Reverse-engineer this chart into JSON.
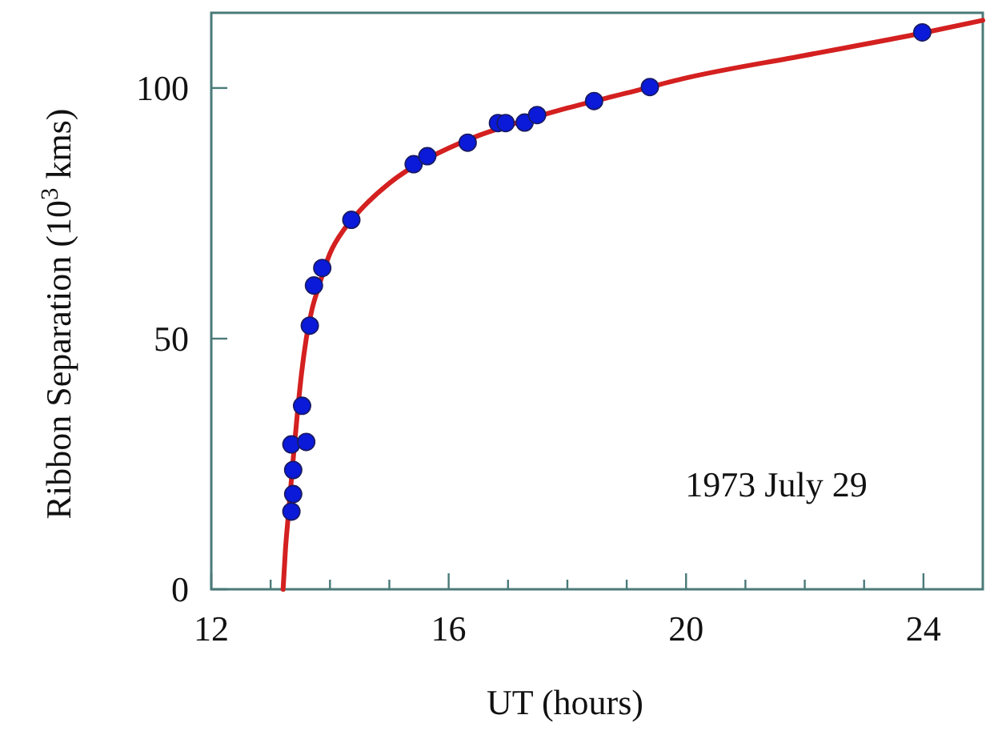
{
  "chart_data": {
    "type": "scatter",
    "xlabel": "UT (hours)",
    "ylabel": "Ribbon Separation (10$^{3}$ kms)",
    "xlim": [
      12,
      25
    ],
    "ylim": [
      0,
      115
    ],
    "xticks": [
      12,
      {
        "value": 13,
        "label": null
      },
      {
        "value": 14,
        "label": null
      },
      {
        "value": 15,
        "label": null
      },
      16,
      {
        "value": 17,
        "label": null
      },
      {
        "value": 18,
        "label": null
      },
      {
        "value": 19,
        "label": null
      },
      20,
      {
        "value": 21,
        "label": null
      },
      {
        "value": 22,
        "label": null
      },
      {
        "value": 23,
        "label": null
      },
      24
    ],
    "yticks": [
      0,
      50,
      100
    ],
    "grid": false,
    "marker": "circle",
    "annotations": [
      "1973 July 29"
    ],
    "series": [
      {
        "type": "line",
        "color": "#d42020",
        "line_style": "solid",
        "marker": "none",
        "x": [
          13.21,
          13.25,
          13.3,
          13.38,
          13.45,
          13.52,
          13.6,
          13.7,
          13.8,
          14.0,
          14.25,
          14.5,
          15.0,
          15.5,
          16.0,
          16.5,
          17.0,
          18.0,
          19.0,
          20.0,
          22.0,
          24.0,
          25.0
        ],
        "values": [
          0,
          8,
          15,
          26,
          35,
          43,
          50,
          56,
          60,
          67,
          72,
          75.5,
          81,
          85,
          88,
          90.5,
          92.5,
          96,
          99,
          102,
          106.5,
          111,
          113.5
        ]
      },
      {
        "color": "#0a1ad8",
        "x": [
          13.35,
          13.38,
          13.38,
          13.35,
          13.6,
          13.53,
          13.66,
          13.73,
          13.87,
          14.36,
          15.41,
          15.64,
          16.32,
          16.83,
          16.96,
          17.28,
          17.49,
          18.45,
          19.39,
          23.98
        ],
        "values": [
          15.5,
          19,
          23.8,
          28.9,
          29.4,
          36.6,
          52.6,
          60.6,
          64.1,
          73.7,
          84.8,
          86.4,
          89.1,
          93,
          93,
          93.1,
          94.6,
          97.4,
          100.2,
          111.1
        ]
      }
    ]
  }
}
